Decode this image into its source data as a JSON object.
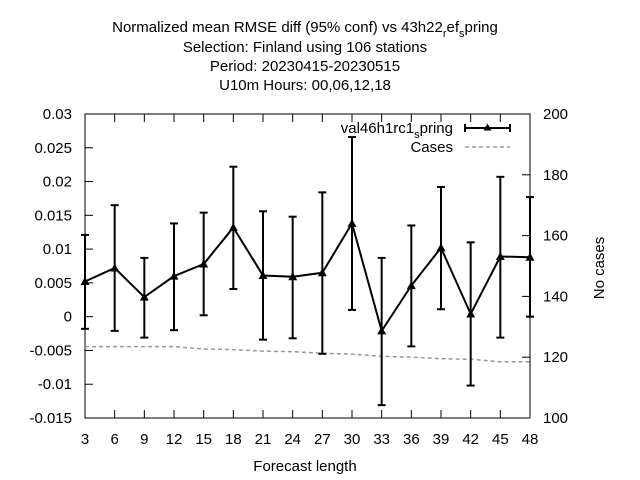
{
  "chart_data": {
    "type": "line",
    "title_lines": [
      "Normalized mean RMSE diff (95% conf) vs 43h22_ref_spring",
      "Selection: Finland using   106 stations",
      "Period: 20230415-20230515",
      "U10m   Hours:  00,06,12,18"
    ],
    "xlabel": "Forecast length",
    "ylabel": "",
    "y2label": "No cases",
    "x": [
      3,
      6,
      9,
      12,
      15,
      18,
      21,
      24,
      27,
      30,
      33,
      36,
      39,
      42,
      45,
      48
    ],
    "xlim": [
      3,
      48
    ],
    "ylim": [
      -0.015,
      0.03
    ],
    "y2lim": [
      100,
      200
    ],
    "x_ticks": [
      "3",
      "6",
      "9",
      "12",
      "15",
      "18",
      "21",
      "24",
      "27",
      "30",
      "33",
      "36",
      "39",
      "42",
      "45",
      "48"
    ],
    "y_ticks": [
      "-0.015",
      "-0.01",
      "-0.005",
      "0",
      "0.005",
      "0.01",
      "0.015",
      "0.02",
      "0.025",
      "0.03"
    ],
    "y2_ticks": [
      "100",
      "120",
      "140",
      "160",
      "180",
      "200"
    ],
    "grid": false,
    "legend_position": "top-right",
    "series": [
      {
        "name": "val46h1rc1_spring",
        "axis": "y",
        "color": "#000000",
        "marker": "triangle",
        "values": [
          0.0052,
          0.0072,
          0.0029,
          0.006,
          0.0078,
          0.0132,
          0.0061,
          0.0059,
          0.0065,
          0.0138,
          -0.0021,
          0.0046,
          0.0102,
          0.0004,
          0.0089,
          0.0088
        ],
        "err_low": [
          -0.0018,
          -0.0021,
          -0.0031,
          -0.002,
          0.0002,
          0.0041,
          -0.0034,
          -0.0032,
          -0.0055,
          0.001,
          -0.0131,
          -0.0044,
          0.0011,
          -0.0102,
          -0.0031,
          0.0
        ],
        "err_high": [
          0.0121,
          0.0165,
          0.0087,
          0.0138,
          0.0154,
          0.0222,
          0.0156,
          0.0148,
          0.0184,
          0.0266,
          0.0087,
          0.0135,
          0.0192,
          0.011,
          0.0207,
          0.0177
        ]
      },
      {
        "name": "Cases",
        "axis": "y2",
        "color": "#888888",
        "dashed": true,
        "values": [
          123.5,
          123.5,
          123.5,
          123.5,
          122.7,
          122.5,
          122.0,
          121.8,
          121.3,
          121.0,
          120.3,
          120.0,
          119.5,
          119.3,
          118.5,
          118.5
        ]
      }
    ]
  }
}
